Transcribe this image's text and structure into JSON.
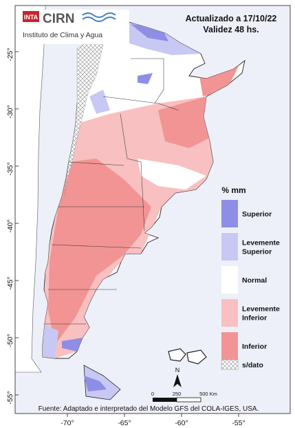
{
  "header": {
    "org_short": "INTA",
    "org_name": "CIRN",
    "institute": "Instituto de Clima y Agua",
    "updated": "Actualizado a 17/10/22",
    "validity": "Validez 48 hs."
  },
  "legend": {
    "title": "% mm",
    "items": [
      {
        "label_lines": [
          "Superior"
        ],
        "color": "#8e8ee6"
      },
      {
        "label_lines": [
          "Levemente",
          "Superior"
        ],
        "color": "#c8c8f4"
      },
      {
        "label_lines": [
          "Normal"
        ],
        "color": "#ffffff"
      },
      {
        "label_lines": [
          "Levemente",
          "Inferior"
        ],
        "color": "#f8c0c0"
      },
      {
        "label_lines": [
          "Inferior"
        ],
        "color": "#f29494"
      },
      {
        "label_lines": [
          "s/dato"
        ],
        "color": "hatch"
      }
    ]
  },
  "scalebar": {
    "ticks": [
      "0",
      "250",
      "500 Km"
    ]
  },
  "north_arrow": {
    "label": "N"
  },
  "axes": {
    "lat_labels": [
      "-25°",
      "-30°",
      "-35°",
      "-40°",
      "-45°",
      "-50°",
      "-55°"
    ],
    "lon_labels": [
      "-70°",
      "-65°",
      "-60°",
      "-55°"
    ]
  },
  "footer": {
    "source": "Fuente: Adaptado e interpretado del Modelo GFS del COLA-IGES, USA."
  },
  "colors": {
    "ocean": "#eef0f9",
    "frame": "#444444"
  }
}
